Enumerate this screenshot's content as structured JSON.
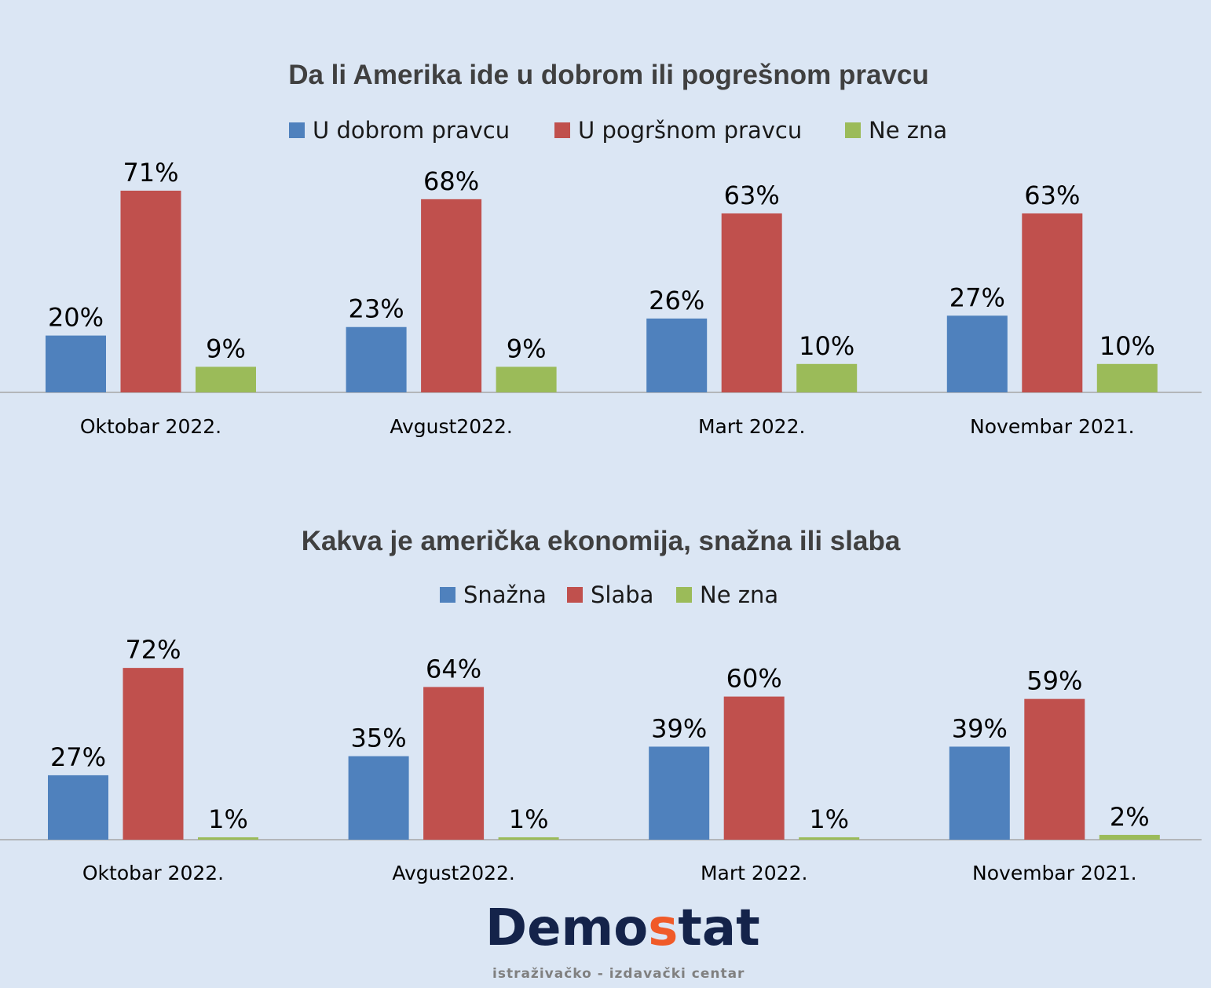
{
  "colors": {
    "blue": "#4f81bd",
    "red": "#c0504d",
    "green": "#9bbb59",
    "background": "#dbe6f4",
    "logo_dark": "#14234a",
    "logo_accent": "#f05a28"
  },
  "chart_data": [
    {
      "type": "bar",
      "title": "Da li Amerika ide u dobrom ili pogrešnom pravcu",
      "categories": [
        "Oktobar 2022.",
        "Avgust2022.",
        "Mart 2022.",
        "Novembar 2021."
      ],
      "series": [
        {
          "name": "U dobrom pravcu",
          "values": [
            20,
            23,
            26,
            27
          ],
          "labels": [
            "20%",
            "23%",
            "26%",
            "27%"
          ]
        },
        {
          "name": "U pogršnom pravcu",
          "values": [
            71,
            68,
            63,
            63
          ],
          "labels": [
            "71%",
            "68%",
            "63%",
            "63%"
          ]
        },
        {
          "name": "Ne zna",
          "values": [
            9,
            9,
            10,
            10
          ],
          "labels": [
            "9%",
            "9%",
            "10%",
            "10%"
          ]
        }
      ],
      "legend": "top",
      "grid": false
    },
    {
      "type": "bar",
      "title": "Kakva je američka ekonomija, snažna ili slaba",
      "categories": [
        "Oktobar 2022.",
        "Avgust2022.",
        "Mart 2022.",
        "Novembar 2021."
      ],
      "series": [
        {
          "name": "Snažna",
          "values": [
            27,
            35,
            39,
            39
          ],
          "labels": [
            "27%",
            "35%",
            "39%",
            "39%"
          ]
        },
        {
          "name": "Slaba",
          "values": [
            72,
            64,
            60,
            59
          ],
          "labels": [
            "72%",
            "64%",
            "60%",
            "59%"
          ]
        },
        {
          "name": "Ne zna",
          "values": [
            1,
            1,
            1,
            2
          ],
          "labels": [
            "1%",
            "1%",
            "1%",
            "2%"
          ]
        }
      ],
      "legend": "top",
      "grid": false
    }
  ],
  "logo": {
    "name_part1": "Demo",
    "name_accent": "s",
    "name_part2": "tat",
    "tagline": "istraživačko - izdavački  centar"
  }
}
